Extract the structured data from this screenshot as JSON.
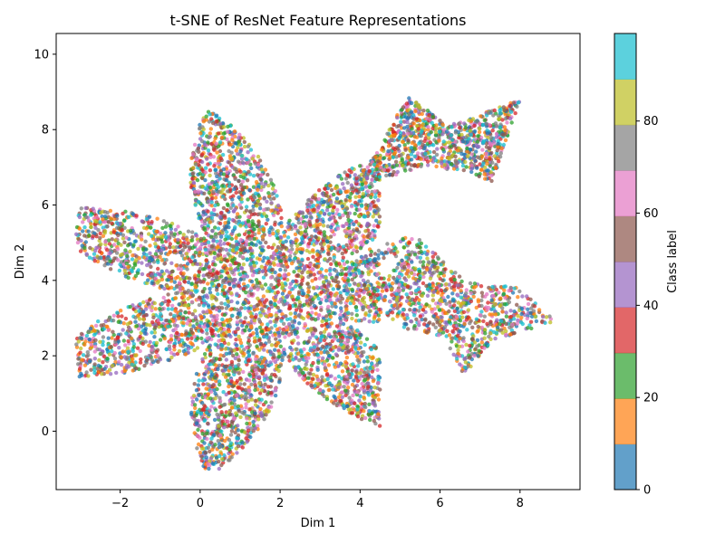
{
  "chart_data": {
    "type": "scatter",
    "title": "t-SNE of ResNet Feature Representations",
    "xlabel": "Dim 1",
    "ylabel": "Dim 2",
    "xlim": [
      -3.6,
      9.5
    ],
    "ylim": [
      -1.55,
      10.55
    ],
    "xticks": [
      -2,
      0,
      2,
      4,
      6,
      8
    ],
    "yticks": [
      0,
      2,
      4,
      6,
      8,
      10
    ],
    "grid": false,
    "colorbar": {
      "label": "Class label",
      "range": [
        0,
        99
      ],
      "ticks": [
        0,
        20,
        40,
        60,
        80
      ],
      "bins": 10,
      "colors": [
        "#1f77b4",
        "#ff7f0e",
        "#2ca02c",
        "#d62728",
        "#9467bd",
        "#8c564b",
        "#e377c2",
        "#7f7f7f",
        "#bcbd22",
        "#17becf"
      ]
    },
    "clusters": {
      "star": {
        "center": [
          1.6,
          3.7
        ],
        "points": 7,
        "inner_radius": 2.15,
        "outer_radius": 6.3,
        "rotation_deg": 103,
        "count": 5200
      },
      "upper_right": {
        "polygon": [
          [
            4.0,
            6.6
          ],
          [
            5.2,
            8.9
          ],
          [
            6.2,
            8.1
          ],
          [
            8.0,
            8.8
          ],
          [
            7.3,
            6.6
          ],
          [
            6.6,
            6.9
          ],
          [
            5.5,
            7.0
          ],
          [
            4.6,
            6.7
          ]
        ],
        "count": 900
      },
      "lower_right": {
        "polygon": [
          [
            4.2,
            3.7
          ],
          [
            5.5,
            5.1
          ],
          [
            6.6,
            4.0
          ],
          [
            8.0,
            3.8
          ],
          [
            8.9,
            2.9
          ],
          [
            7.3,
            2.4
          ],
          [
            6.6,
            1.5
          ],
          [
            6.1,
            2.5
          ],
          [
            5.2,
            2.7
          ],
          [
            4.2,
            3.3
          ]
        ],
        "count": 900
      },
      "spine": {
        "from": [
          3.7,
          4.3
        ],
        "to": [
          5.4,
          5.1
        ],
        "count": 60
      }
    },
    "legend": "none"
  }
}
